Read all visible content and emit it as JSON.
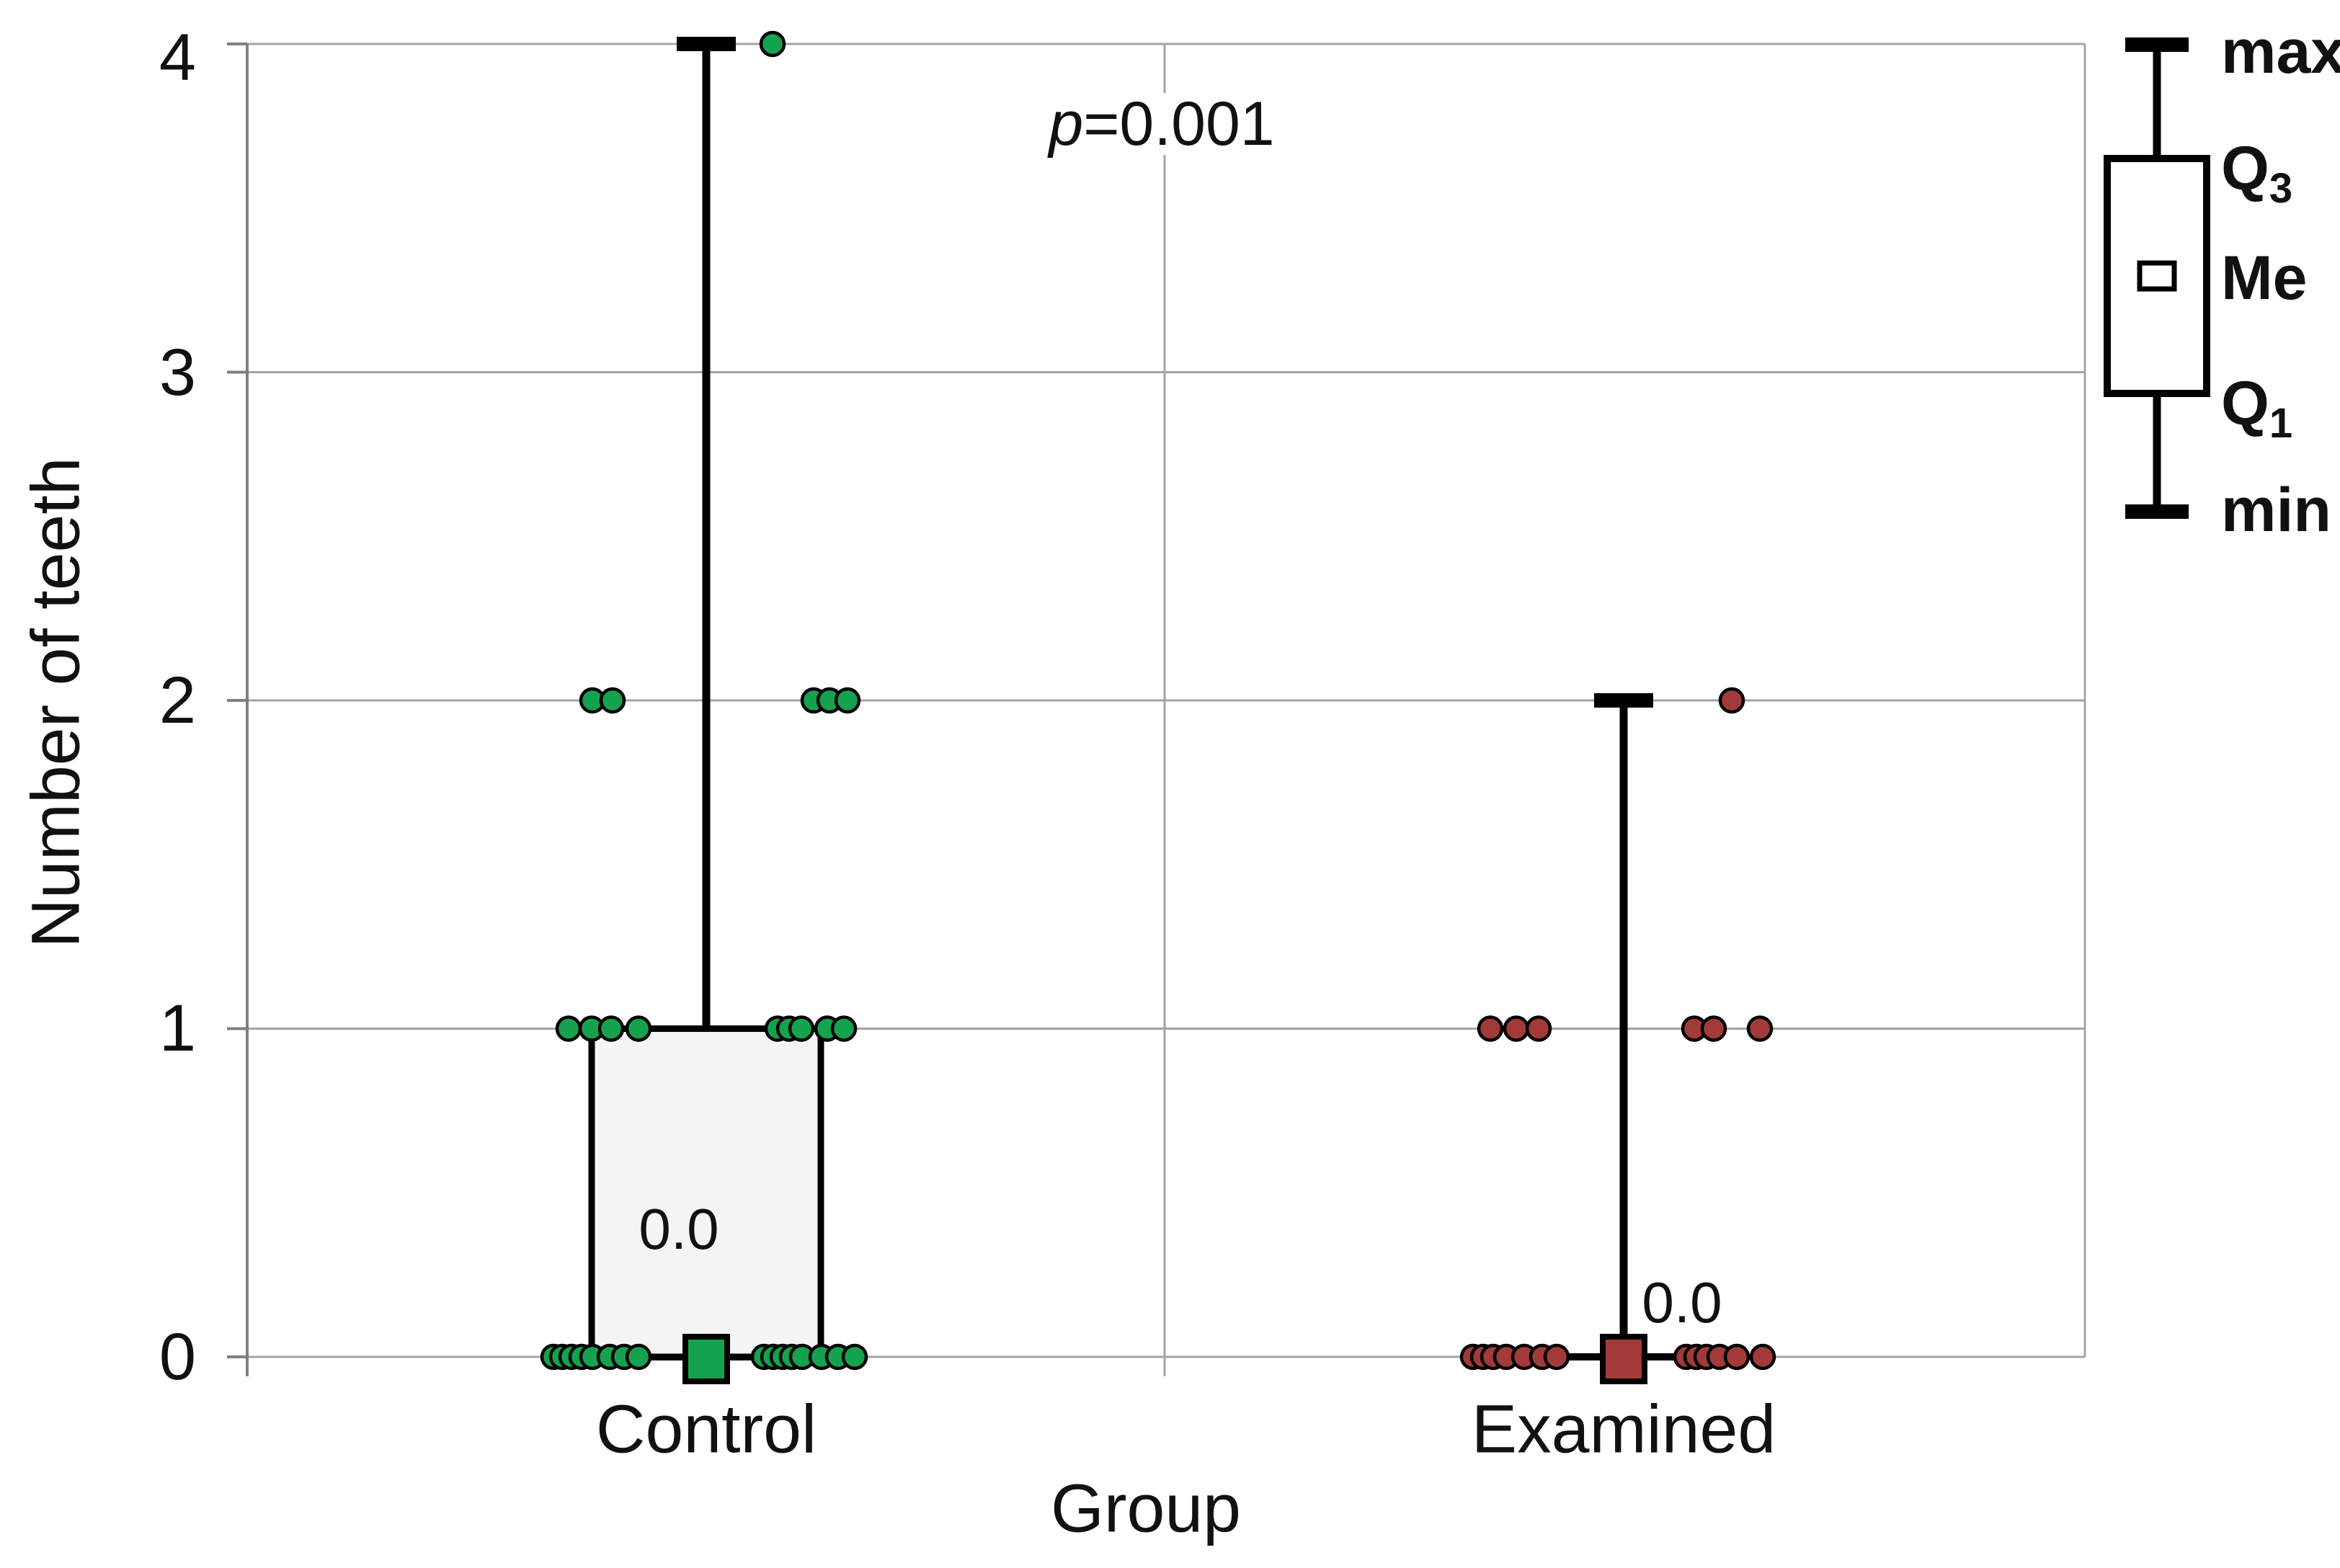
{
  "axes": {
    "y_label": "Number of teeth",
    "x_label": "Group",
    "y_ticks": [
      "4",
      "3",
      "2",
      "1",
      "0"
    ],
    "x_categories": [
      "Control",
      "Examined"
    ]
  },
  "annotation": {
    "prefix": "p",
    "text": "=0.001"
  },
  "legend": {
    "items": [
      {
        "base": "max",
        "sub": ""
      },
      {
        "base": "Q",
        "sub": "3"
      },
      {
        "base": "Me",
        "sub": ""
      },
      {
        "base": "Q",
        "sub": "1"
      },
      {
        "base": "min",
        "sub": ""
      }
    ]
  },
  "chart_data": {
    "type": "boxplot",
    "title": "",
    "ylabel": "Number of teeth",
    "xlabel": "Group",
    "ylim": [
      0,
      4
    ],
    "y_ticks": [
      0,
      1,
      2,
      3,
      4
    ],
    "grid": true,
    "legend_position": "top-right-outside",
    "annotation": "p=0.001",
    "legend_labels": [
      "max",
      "Q3",
      "Me",
      "Q1",
      "min"
    ],
    "colors": {
      "control": "#15a24e",
      "examined": "#a23a3a",
      "box_fill": "#f4f4f4",
      "gridline": "#a3a3a3",
      "axis": "#7f7f7f",
      "ink": "#000000"
    },
    "groups": [
      {
        "name": "Control",
        "color": "#15a24e",
        "min": 0,
        "q1": 0,
        "median": 0,
        "q3": 1,
        "max": 4,
        "median_label": "0.0",
        "points": [
          {
            "v": 4,
            "dx": 92
          },
          {
            "v": 2,
            "dx": -158
          },
          {
            "v": 2,
            "dx": -130
          },
          {
            "v": 2,
            "dx": 149
          },
          {
            "v": 2,
            "dx": 171
          },
          {
            "v": 2,
            "dx": 196
          },
          {
            "v": 1,
            "dx": -191
          },
          {
            "v": 1,
            "dx": -159
          },
          {
            "v": 1,
            "dx": -132
          },
          {
            "v": 1,
            "dx": -94
          },
          {
            "v": 1,
            "dx": 99
          },
          {
            "v": 1,
            "dx": 115
          },
          {
            "v": 1,
            "dx": 132
          },
          {
            "v": 1,
            "dx": 168
          },
          {
            "v": 1,
            "dx": 191
          },
          {
            "v": 0,
            "dx": -212
          },
          {
            "v": 0,
            "dx": -200
          },
          {
            "v": 0,
            "dx": -187
          },
          {
            "v": 0,
            "dx": -173
          },
          {
            "v": 0,
            "dx": -158
          },
          {
            "v": 0,
            "dx": -134
          },
          {
            "v": 0,
            "dx": -114
          },
          {
            "v": 0,
            "dx": -94
          },
          {
            "v": 0,
            "dx": 80
          },
          {
            "v": 0,
            "dx": 93
          },
          {
            "v": 0,
            "dx": 106
          },
          {
            "v": 0,
            "dx": 119
          },
          {
            "v": 0,
            "dx": 133
          },
          {
            "v": 0,
            "dx": 160
          },
          {
            "v": 0,
            "dx": 183
          },
          {
            "v": 0,
            "dx": 206
          }
        ]
      },
      {
        "name": "Examined",
        "color": "#a23a3a",
        "min": 0,
        "q1": 0,
        "median": 0,
        "q3": 0,
        "max": 2,
        "median_label": "0.0",
        "points": [
          {
            "v": 2,
            "dx": 150
          },
          {
            "v": 1,
            "dx": -185
          },
          {
            "v": 1,
            "dx": -149
          },
          {
            "v": 1,
            "dx": -118
          },
          {
            "v": 1,
            "dx": 98
          },
          {
            "v": 1,
            "dx": 125
          },
          {
            "v": 1,
            "dx": 189
          },
          {
            "v": 0,
            "dx": -209
          },
          {
            "v": 0,
            "dx": -195
          },
          {
            "v": 0,
            "dx": -181
          },
          {
            "v": 0,
            "dx": -163
          },
          {
            "v": 0,
            "dx": -138
          },
          {
            "v": 0,
            "dx": -113
          },
          {
            "v": 0,
            "dx": -93
          },
          {
            "v": 0,
            "dx": 87
          },
          {
            "v": 0,
            "dx": 101
          },
          {
            "v": 0,
            "dx": 115
          },
          {
            "v": 0,
            "dx": 133
          },
          {
            "v": 0,
            "dx": 157
          },
          {
            "v": 0,
            "dx": 193
          }
        ]
      }
    ]
  }
}
